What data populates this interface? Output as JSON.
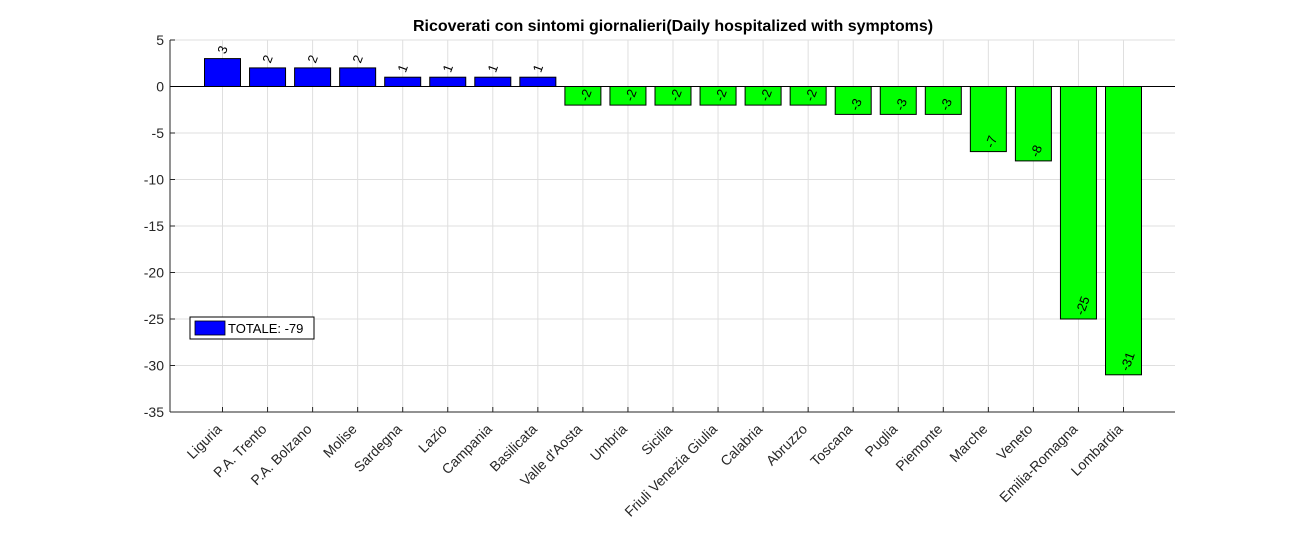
{
  "chart_data": {
    "type": "bar",
    "title": "Ricoverati con sintomi giornalieri(Daily hospitalized with symptoms)",
    "xlabel": "",
    "ylabel": "",
    "ylim": [
      -35,
      5
    ],
    "yticks": [
      5,
      0,
      -5,
      -10,
      -15,
      -20,
      -25,
      -30,
      -35
    ],
    "grid": true,
    "legend_position": "middle-left",
    "legend": [
      {
        "label": "TOTALE: -79",
        "color": "#0000ff"
      }
    ],
    "positive_color": "#0000ff",
    "negative_color": "#00ff00",
    "categories": [
      "Liguria",
      "P.A. Trento",
      "P.A. Bolzano",
      "Molise",
      "Sardegna",
      "Lazio",
      "Campania",
      "Basilicata",
      "Valle d'Aosta",
      "Umbria",
      "Sicilia",
      "Friuli Venezia Giulia",
      "Calabria",
      "Abruzzo",
      "Toscana",
      "Puglia",
      "Piemonte",
      "Marche",
      "Veneto",
      "Emilia-Romagna",
      "Lombardia"
    ],
    "values": [
      3,
      2,
      2,
      2,
      1,
      1,
      1,
      1,
      -2,
      -2,
      -2,
      -2,
      -2,
      -2,
      -3,
      -3,
      -3,
      -7,
      -8,
      -25,
      -31
    ]
  }
}
